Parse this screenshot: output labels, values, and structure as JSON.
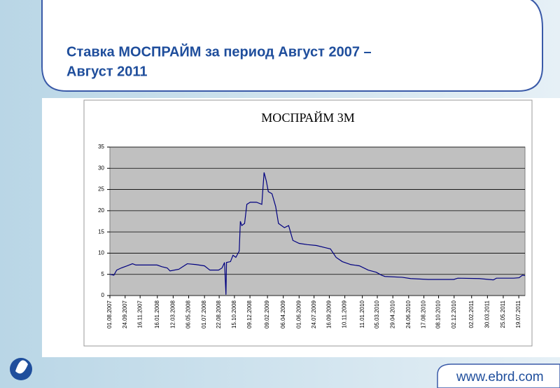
{
  "slide_title": [
    "Ставка МОСПРАЙМ за период Август 2007 –",
    "Август 2011"
  ],
  "footer": "www.ebrd.com",
  "chart_data": {
    "type": "line",
    "title": "МОСПРАЙМ 3М",
    "series": [
      {
        "name": "МОСПРАЙМ 3М",
        "color": "#000080",
        "x": [
          "01.08.2007",
          "15.08.2007",
          "25.08.2007",
          "10.09.2007",
          "01.10.2007",
          "20.10.2007",
          "01.11.2007",
          "01.12.2007",
          "15.01.2008",
          "01.02.2008",
          "20.02.2008",
          "01.03.2008",
          "01.04.2008",
          "01.05.2008",
          "01.06.2008",
          "01.07.2008",
          "20.07.2008",
          "20.08.2008",
          "01.09.2008",
          "10.09.2008",
          "15.09.2008",
          "17.09.2008",
          "01.10.2008",
          "10.10.2008",
          "20.10.2008",
          "01.11.2008",
          "05.11.2008",
          "10.11.2008",
          "20.11.2008",
          "28.11.2008",
          "10.12.2008",
          "01.01.2009",
          "20.01.2009",
          "28.01.2009",
          "05.02.2009",
          "12.02.2009",
          "25.02.2009",
          "10.03.2009",
          "20.03.2009",
          "10.04.2009",
          "25.04.2009",
          "10.05.2009",
          "01.06.2009",
          "01.07.2009",
          "01.08.2009",
          "01.09.2009",
          "20.09.2009",
          "10.10.2009",
          "01.11.2009",
          "01.12.2009",
          "01.01.2010",
          "01.02.2010",
          "01.03.2010",
          "20.03.2010",
          "01.04.2010",
          "01.06.2010",
          "01.07.2010",
          "01.09.2010",
          "01.12.2010",
          "15.12.2010",
          "01.03.2011",
          "20.04.2011",
          "01.05.2011",
          "01.07.2011",
          "20.07.2011",
          "01.08.2011",
          "10.08.2011"
        ],
        "values": [
          5.0,
          4.8,
          6.0,
          6.5,
          7.0,
          7.5,
          7.2,
          7.2,
          7.2,
          6.8,
          6.5,
          5.8,
          6.2,
          7.5,
          7.3,
          7.0,
          6.0,
          6.0,
          6.5,
          7.8,
          0.2,
          7.8,
          8.0,
          9.5,
          9.0,
          10.5,
          17.5,
          16.5,
          17.0,
          21.5,
          22.0,
          22.0,
          21.5,
          29.0,
          27.0,
          24.5,
          24.0,
          21.0,
          17.0,
          16.0,
          16.5,
          13.0,
          12.3,
          12.0,
          11.8,
          11.3,
          11.0,
          9.0,
          8.0,
          7.3,
          7.0,
          6.0,
          5.5,
          4.8,
          4.5,
          4.3,
          4.0,
          3.8,
          3.8,
          4.1,
          4.0,
          3.7,
          4.1,
          4.1,
          4.2,
          4.8,
          4.7
        ]
      }
    ],
    "xlim": [
      "01.08.2007",
      "10.08.2011"
    ],
    "xticks": [
      "01.08.2007",
      "24.09.2007",
      "16.11.2007",
      "16.01.2008",
      "12.03.2008",
      "06.05.2008",
      "01.07.2008",
      "22.08.2008",
      "15.10.2008",
      "09.12.2008",
      "09.02.2009",
      "06.04.2009",
      "01.06.2009",
      "24.07.2009",
      "16.09.2009",
      "10.11.2009",
      "11.01.2010",
      "05.03.2010",
      "29.04.2010",
      "24.06.2010",
      "17.08.2010",
      "08.10.2010",
      "02.12.2010",
      "02.02.2011",
      "30.03.2011",
      "25.05.2011",
      "19.07.2011"
    ],
    "ylim": [
      0,
      35
    ],
    "yticks": [
      0,
      5,
      10,
      15,
      20,
      25,
      30,
      35
    ],
    "grid": true
  }
}
